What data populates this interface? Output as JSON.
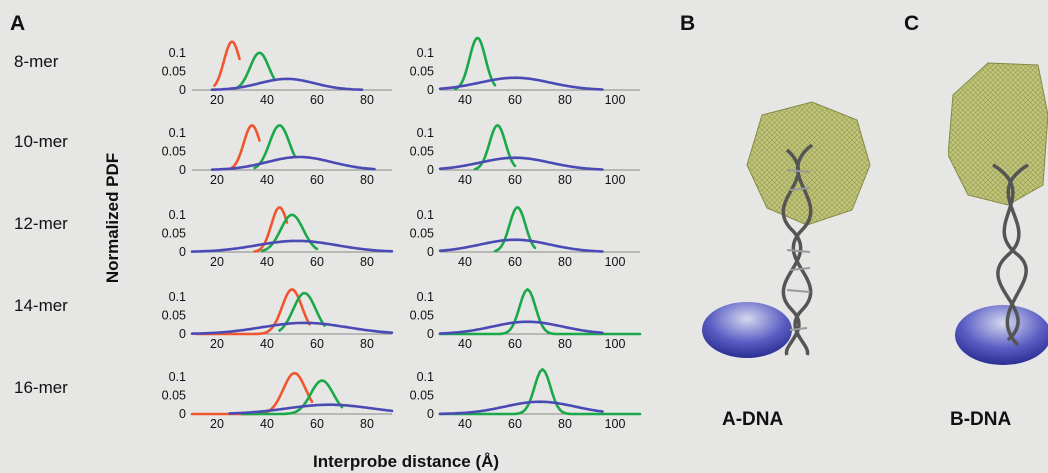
{
  "panels": {
    "a": "A",
    "b": "B",
    "c": "C"
  },
  "axis_labels": {
    "y": "Normalized PDF",
    "x": "Interprobe distance (Å)"
  },
  "molecules": {
    "b": "A-DNA",
    "c": "B-DNA"
  },
  "colors": {
    "red": "#f0562e",
    "green": "#1aa84a",
    "blue": "#4a4ab4"
  },
  "chart_data": [
    {
      "type": "line",
      "row": "8-mer",
      "column": "left",
      "xlim": [
        10,
        90
      ],
      "ylim": [
        0,
        0.14
      ],
      "xticks": [
        20,
        40,
        60,
        80
      ],
      "yticks": [
        0,
        0.05,
        0.1
      ],
      "series": [
        {
          "color": "red",
          "mu": 26,
          "sd": 3.2,
          "peak": 0.13,
          "range": [
            19,
            29
          ]
        },
        {
          "color": "green",
          "mu": 37,
          "sd": 3.8,
          "peak": 0.1,
          "range": [
            28,
            43
          ]
        },
        {
          "color": "blue",
          "mu": 48,
          "sd": 11,
          "peak": 0.03,
          "range": [
            18,
            78
          ]
        }
      ]
    },
    {
      "type": "line",
      "row": "8-mer",
      "column": "right",
      "xlim": [
        30,
        110
      ],
      "ylim": [
        0,
        0.14
      ],
      "xticks": [
        40,
        60,
        80,
        100
      ],
      "yticks": [
        0,
        0.05,
        0.1
      ],
      "series": [
        {
          "color": "green",
          "mu": 45,
          "sd": 3.2,
          "peak": 0.14,
          "range": [
            36,
            52
          ]
        },
        {
          "color": "blue",
          "mu": 60,
          "sd": 14,
          "peak": 0.033,
          "range": [
            30,
            95
          ]
        }
      ]
    },
    {
      "type": "line",
      "row": "10-mer",
      "column": "left",
      "xlim": [
        10,
        90
      ],
      "ylim": [
        0,
        0.14
      ],
      "xticks": [
        20,
        40,
        60,
        80
      ],
      "yticks": [
        0,
        0.05,
        0.1
      ],
      "series": [
        {
          "color": "red",
          "mu": 34,
          "sd": 3.3,
          "peak": 0.12,
          "range": [
            25,
            37
          ]
        },
        {
          "color": "green",
          "mu": 45,
          "sd": 4,
          "peak": 0.12,
          "range": [
            35,
            51
          ]
        },
        {
          "color": "blue",
          "mu": 53,
          "sd": 13,
          "peak": 0.035,
          "range": [
            18,
            83
          ]
        }
      ]
    },
    {
      "type": "line",
      "row": "10-mer",
      "column": "right",
      "xlim": [
        30,
        110
      ],
      "ylim": [
        0,
        0.14
      ],
      "xticks": [
        40,
        60,
        80,
        100
      ],
      "yticks": [
        0,
        0.05,
        0.1
      ],
      "series": [
        {
          "color": "green",
          "mu": 53,
          "sd": 3.2,
          "peak": 0.12,
          "range": [
            44,
            60
          ]
        },
        {
          "color": "blue",
          "mu": 60,
          "sd": 14,
          "peak": 0.033,
          "range": [
            30,
            95
          ]
        }
      ]
    },
    {
      "type": "line",
      "row": "12-mer",
      "column": "left",
      "xlim": [
        10,
        90
      ],
      "ylim": [
        0,
        0.14
      ],
      "xticks": [
        20,
        40,
        60,
        80
      ],
      "yticks": [
        0,
        0.05,
        0.1
      ],
      "series": [
        {
          "color": "red",
          "mu": 45,
          "sd": 3.3,
          "peak": 0.12,
          "range": [
            35,
            48
          ]
        },
        {
          "color": "green",
          "mu": 50,
          "sd": 4.5,
          "peak": 0.1,
          "range": [
            38,
            60
          ]
        },
        {
          "color": "blue",
          "mu": 52,
          "sd": 16,
          "peak": 0.03,
          "range": [
            10,
            90
          ]
        }
      ]
    },
    {
      "type": "line",
      "row": "12-mer",
      "column": "right",
      "xlim": [
        30,
        110
      ],
      "ylim": [
        0,
        0.14
      ],
      "xticks": [
        40,
        60,
        80,
        100
      ],
      "yticks": [
        0,
        0.05,
        0.1
      ],
      "series": [
        {
          "color": "green",
          "mu": 61,
          "sd": 3.2,
          "peak": 0.12,
          "range": [
            52,
            68
          ]
        },
        {
          "color": "blue",
          "mu": 60,
          "sd": 14,
          "peak": 0.033,
          "range": [
            30,
            95
          ]
        }
      ]
    },
    {
      "type": "line",
      "row": "14-mer",
      "column": "left",
      "xlim": [
        10,
        90
      ],
      "ylim": [
        0,
        0.14
      ],
      "xticks": [
        20,
        40,
        60,
        80
      ],
      "yticks": [
        0,
        0.05,
        0.1
      ],
      "series": [
        {
          "color": "red",
          "mu": 50,
          "sd": 4,
          "peak": 0.12,
          "range": [
            12,
            57
          ]
        },
        {
          "color": "green",
          "mu": 55,
          "sd": 4.5,
          "peak": 0.11,
          "range": [
            45,
            63
          ]
        },
        {
          "color": "blue",
          "mu": 55,
          "sd": 17,
          "peak": 0.03,
          "range": [
            10,
            90
          ]
        }
      ]
    },
    {
      "type": "line",
      "row": "14-mer",
      "column": "right",
      "xlim": [
        30,
        110
      ],
      "ylim": [
        0,
        0.14
      ],
      "xticks": [
        40,
        60,
        80,
        100
      ],
      "yticks": [
        0,
        0.05,
        0.1
      ],
      "series": [
        {
          "color": "green",
          "mu": 65,
          "sd": 3.2,
          "peak": 0.12,
          "range": [
            30,
            110
          ]
        },
        {
          "color": "blue",
          "mu": 65,
          "sd": 14,
          "peak": 0.033,
          "range": [
            30,
            95
          ]
        }
      ]
    },
    {
      "type": "line",
      "row": "16-mer",
      "column": "left",
      "xlim": [
        10,
        90
      ],
      "ylim": [
        0,
        0.14
      ],
      "xticks": [
        20,
        40,
        60,
        80
      ],
      "yticks": [
        0,
        0.05,
        0.1
      ],
      "series": [
        {
          "color": "red",
          "mu": 51,
          "sd": 4.5,
          "peak": 0.11,
          "range": [
            10,
            58
          ]
        },
        {
          "color": "green",
          "mu": 62,
          "sd": 4.5,
          "peak": 0.09,
          "range": [
            30,
            70
          ]
        },
        {
          "color": "blue",
          "mu": 65,
          "sd": 17,
          "peak": 0.025,
          "range": [
            25,
            90
          ]
        }
      ]
    },
    {
      "type": "line",
      "row": "16-mer",
      "column": "right",
      "xlim": [
        30,
        110
      ],
      "ylim": [
        0,
        0.14
      ],
      "xticks": [
        40,
        60,
        80,
        100
      ],
      "yticks": [
        0,
        0.05,
        0.1
      ],
      "series": [
        {
          "color": "green",
          "mu": 71,
          "sd": 3.2,
          "peak": 0.12,
          "range": [
            30,
            110
          ]
        },
        {
          "color": "blue",
          "mu": 70,
          "sd": 14,
          "peak": 0.033,
          "range": [
            30,
            95
          ]
        }
      ]
    }
  ]
}
